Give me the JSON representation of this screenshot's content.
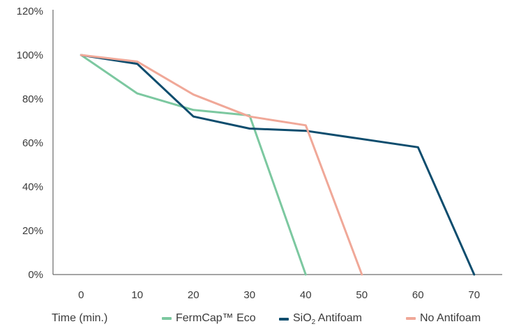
{
  "chart_data": {
    "type": "line",
    "xlabel": "Time (min.)",
    "x": [
      0,
      10,
      20,
      30,
      40,
      50,
      60,
      70
    ],
    "xlim": [
      -5,
      75
    ],
    "ylim": [
      0,
      1.2
    ],
    "y_ticks": [
      "0%",
      "20%",
      "40%",
      "60%",
      "80%",
      "100%",
      "120%"
    ],
    "x_ticks": [
      "0",
      "10",
      "20",
      "30",
      "40",
      "50",
      "60",
      "70"
    ],
    "grid": false,
    "legend_position": "bottom",
    "series": [
      {
        "name": "FermCap™ Eco",
        "color": "#7cc8a0",
        "points": [
          [
            0,
            1.0
          ],
          [
            10,
            0.825
          ],
          [
            20,
            0.75
          ],
          [
            30,
            0.725
          ],
          [
            40,
            0.0
          ]
        ]
      },
      {
        "name": "SiO2 Antifoam",
        "name_parts": [
          "SiO",
          "2",
          " Antifoam"
        ],
        "color": "#0e4d6e",
        "points": [
          [
            0,
            1.0
          ],
          [
            10,
            0.96
          ],
          [
            20,
            0.72
          ],
          [
            30,
            0.665
          ],
          [
            40,
            0.655
          ],
          [
            60,
            0.58
          ],
          [
            70,
            0.0
          ]
        ]
      },
      {
        "name": "No Antifoam",
        "color": "#f0a898",
        "points": [
          [
            0,
            1.0
          ],
          [
            10,
            0.97
          ],
          [
            20,
            0.82
          ],
          [
            30,
            0.72
          ],
          [
            40,
            0.68
          ],
          [
            50,
            0.0
          ]
        ]
      }
    ]
  }
}
